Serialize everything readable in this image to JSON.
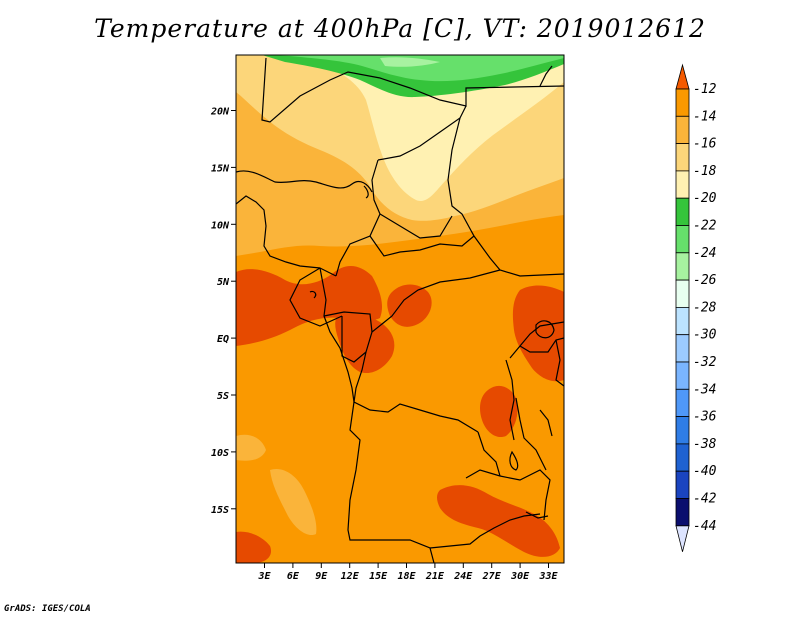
{
  "title": "Temperature at 400hPa [C], VT: 2019012612",
  "credit": "GrADS: IGES/COLA",
  "map": {
    "lon_ticks": [
      "3E",
      "6E",
      "9E",
      "12E",
      "15E",
      "18E",
      "21E",
      "24E",
      "27E",
      "30E",
      "33E"
    ],
    "lat_ticks": [
      "20N",
      "15N",
      "10N",
      "5N",
      "EQ",
      "5S",
      "10S",
      "15S"
    ]
  },
  "colorbar": {
    "labels": [
      "-12",
      "-14",
      "-16",
      "-18",
      "-20",
      "-22",
      "-24",
      "-26",
      "-28",
      "-30",
      "-32",
      "-34",
      "-36",
      "-38",
      "-40",
      "-42",
      "-44"
    ],
    "colors": [
      "#e64a00",
      "#fa9900",
      "#fab43a",
      "#fcd67a",
      "#fff1b2",
      "#35c43b",
      "#66e06b",
      "#a7f2a0",
      "#e8fff0",
      "#bce3ff",
      "#9ccbff",
      "#7ab5ff",
      "#4f98f8",
      "#2f7de6",
      "#1f62d2",
      "#1a44c0",
      "#0a0e6e"
    ],
    "top_color": "#f45a00",
    "bottom_color": "#dde4ff"
  }
}
